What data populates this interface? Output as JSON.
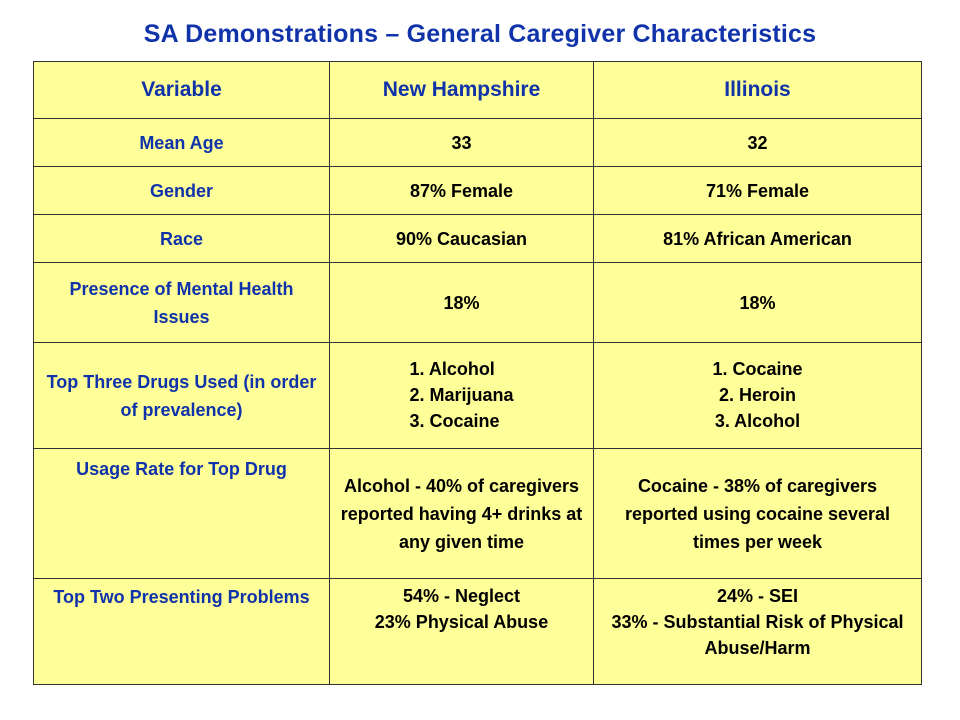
{
  "title": "SA Demonstrations – General Caregiver Characteristics",
  "table": {
    "headers": [
      "Variable",
      "New Hampshire",
      "Illinois"
    ],
    "rows": [
      {
        "variable": "Mean Age",
        "nh": "33",
        "il": "32"
      },
      {
        "variable": "Gender",
        "nh": "87% Female",
        "il": "71% Female"
      },
      {
        "variable": "Race",
        "nh": "90% Caucasian",
        "il": "81% African American"
      },
      {
        "variable": "Presence of Mental Health  Issues",
        "nh": "18%",
        "il": "18%"
      },
      {
        "variable": "Top Three Drugs Used (in order of prevalence)",
        "nh_list": [
          "1. Alcohol",
          "2. Marijuana",
          "3. Cocaine"
        ],
        "il_list": [
          "1. Cocaine",
          "2. Heroin",
          "3. Alcohol"
        ]
      },
      {
        "variable": "Usage Rate for Top Drug",
        "nh": "Alcohol - 40% of caregivers reported having 4+ drinks at any given time",
        "il": "Cocaine - 38% of caregivers reported using cocaine several times per week"
      },
      {
        "variable": "Top Two Presenting Problems",
        "nh_list": [
          "54% - Neglect",
          "23% Physical Abuse"
        ],
        "il_list": [
          "24% - SEI",
          "33% - Substantial Risk of Physical Abuse/Harm"
        ]
      }
    ]
  },
  "colors": {
    "title": "#1133aa",
    "variable_text": "#1133aa",
    "table_bg": "#ffff99",
    "border": "#333333"
  }
}
